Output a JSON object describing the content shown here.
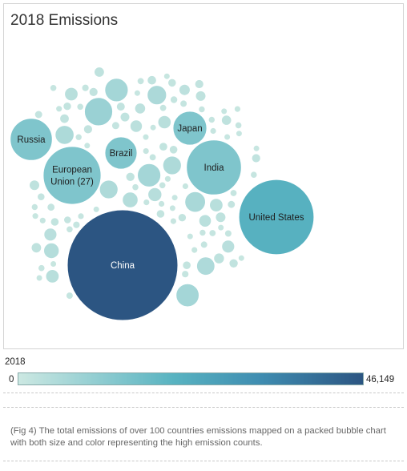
{
  "chart_data": {
    "type": "bubble",
    "title": "2018 Emissions",
    "legend": {
      "title": "2018",
      "min_label": "0",
      "max_label": "46,149",
      "min": 0,
      "max": 46149
    },
    "labeled_series": [
      {
        "name": "China",
        "value": 46149
      },
      {
        "name": "United States",
        "value": 21300
      },
      {
        "name": "India",
        "value": 11400
      },
      {
        "name": "European Union (27)",
        "value": 12600
      },
      {
        "name": "Russia",
        "value": 6700
      },
      {
        "name": "Brazil",
        "value": 3900
      },
      {
        "name": "Japan",
        "value": 4300
      }
    ],
    "unlabeled_count": 110
  },
  "caption": "(Fig 4) The total emissions of over 100 countries emissions mapped on a packed bubble chart with both size and color representing the high emission counts.",
  "colors": {
    "low": "#cce8e2",
    "mid": "#58b3c1",
    "high": "#2c5582"
  }
}
